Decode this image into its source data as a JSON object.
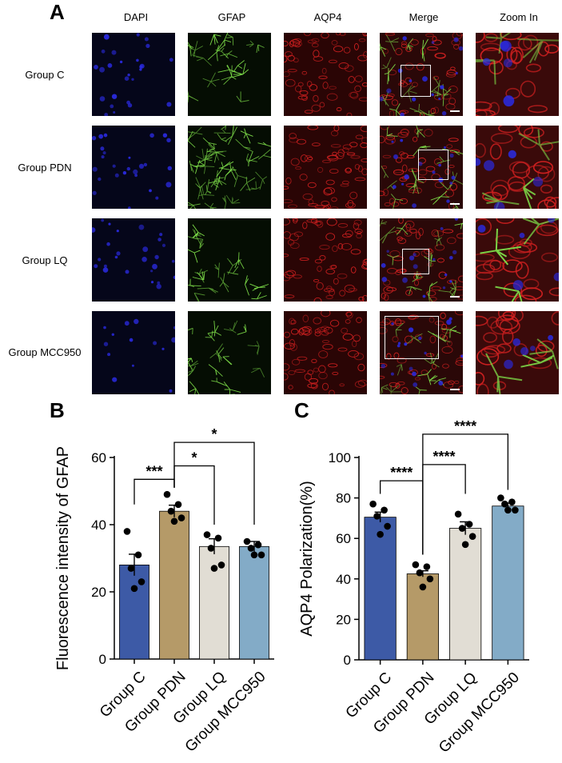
{
  "panel_labels": {
    "a": "A",
    "b": "B",
    "c": "C"
  },
  "micrograph": {
    "columns": [
      "DAPI",
      "GFAP",
      "AQP4",
      "Merge",
      "Zoom In"
    ],
    "rows": [
      "Group C",
      "Group PDN",
      "Group LQ",
      "Group MCC950"
    ],
    "channel_colors": {
      "dapi": "#2a2ae0",
      "gfap": "#7fe04a",
      "aqp4": "#d02020"
    }
  },
  "chart_data": [
    {
      "type": "bar",
      "categories": [
        "Group C",
        "Group PDN",
        "Group LQ",
        "Group MCC950"
      ],
      "values": [
        28,
        44,
        33.5,
        33.5
      ],
      "sem": [
        3.2,
        1.8,
        2.3,
        1.5
      ],
      "points": [
        [
          38,
          31,
          27,
          23,
          21
        ],
        [
          49,
          46,
          44,
          42,
          41
        ],
        [
          37,
          36,
          33,
          28,
          27
        ],
        [
          35,
          34,
          33,
          31,
          31
        ]
      ],
      "colors": [
        "#3d5aa6",
        "#b59a68",
        "#e1ddd4",
        "#83abc7"
      ],
      "ylabel": "Fluorescence intensity of GFAP",
      "ylim": [
        0,
        60
      ],
      "yticks": [
        0,
        20,
        40,
        60
      ],
      "significance": [
        {
          "from": 0,
          "to": 1,
          "label": "***"
        },
        {
          "from": 1,
          "to": 2,
          "label": "*"
        },
        {
          "from": 1,
          "to": 3,
          "label": "*"
        }
      ]
    },
    {
      "type": "bar",
      "categories": [
        "Group C",
        "Group PDN",
        "Group LQ",
        "Group MCC950"
      ],
      "values": [
        70.5,
        42.5,
        65,
        76
      ],
      "sem": [
        2.5,
        1.5,
        3.2,
        1.5
      ],
      "points": [
        [
          77,
          74,
          71,
          66,
          62
        ],
        [
          47,
          46,
          43,
          40,
          36
        ],
        [
          72,
          67,
          65,
          61,
          57
        ],
        [
          80,
          78,
          77,
          74,
          74
        ]
      ],
      "colors": [
        "#3d5aa6",
        "#b59a68",
        "#e1ddd4",
        "#83abc7"
      ],
      "ylabel": "AQP4 Polarization(%)",
      "ylim": [
        0,
        100
      ],
      "yticks": [
        0,
        20,
        40,
        60,
        80,
        100
      ],
      "significance": [
        {
          "from": 0,
          "to": 1,
          "label": "****"
        },
        {
          "from": 1,
          "to": 2,
          "label": "****"
        },
        {
          "from": 1,
          "to": 3,
          "label": "****"
        }
      ]
    }
  ]
}
